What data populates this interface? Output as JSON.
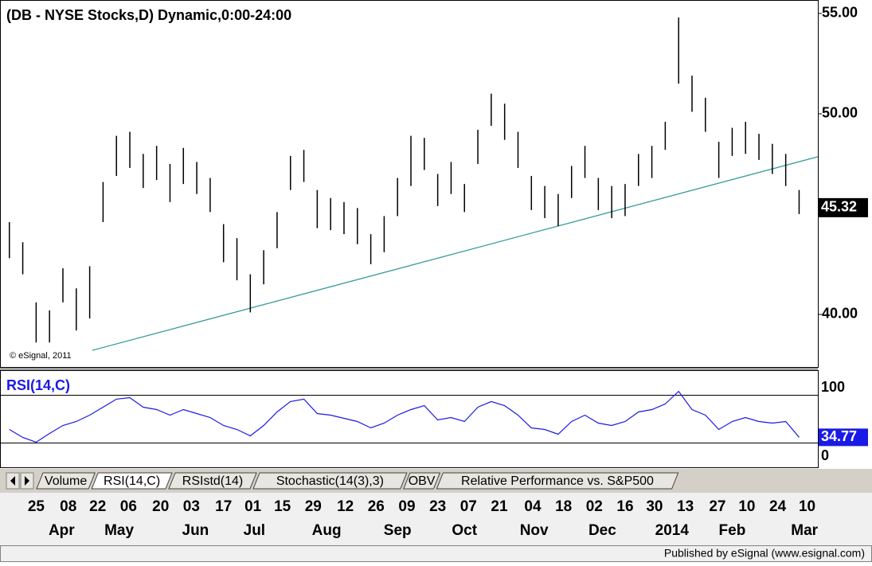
{
  "chart_data": [
    {
      "type": "ohlc",
      "title": "(DB - NYSE Stocks,D) Dynamic,0:00-24:00",
      "watermark": "© eSignal, 2011",
      "color": "#000000",
      "high": [
        44.6,
        43.6,
        40.6,
        40.2,
        42.3,
        41.3,
        42.4,
        46.6,
        48.9,
        49.1,
        48.0,
        48.4,
        47.5,
        48.3,
        47.6,
        46.8,
        44.5,
        43.8,
        42.0,
        43.2,
        45.1,
        47.9,
        48.2,
        46.2,
        45.8,
        45.6,
        45.3,
        44.0,
        44.9,
        46.8,
        48.9,
        48.8,
        47.0,
        47.6,
        46.5,
        49.2,
        51.0,
        50.5,
        49.1,
        46.9,
        46.4,
        46.0,
        47.4,
        48.4,
        46.8,
        46.4,
        46.5,
        48.0,
        48.4,
        49.6,
        54.8,
        51.9,
        50.8,
        48.6,
        49.3,
        49.6,
        49.0,
        48.5,
        48.0,
        46.2
      ],
      "low": [
        42.8,
        42.0,
        38.6,
        38.6,
        40.6,
        39.2,
        39.8,
        44.6,
        46.9,
        47.3,
        46.3,
        46.7,
        45.6,
        46.5,
        46.0,
        45.1,
        42.6,
        41.7,
        40.1,
        41.5,
        43.3,
        46.2,
        46.6,
        44.3,
        44.2,
        44.0,
        43.5,
        42.5,
        43.1,
        44.9,
        46.4,
        47.2,
        45.4,
        46.0,
        45.1,
        47.5,
        49.4,
        48.7,
        47.3,
        45.2,
        44.8,
        44.4,
        45.8,
        46.8,
        45.2,
        44.8,
        44.9,
        46.4,
        46.8,
        48.2,
        51.5,
        50.1,
        49.1,
        46.8,
        47.9,
        48.0,
        47.7,
        47.0,
        46.4,
        45.0
      ],
      "last_price": 45.32,
      "trendline": {
        "x": [
          6.2,
          60.4
        ],
        "y": [
          38.21,
          47.86
        ],
        "color": "#3a9a9a"
      },
      "xlim": [
        -0.7,
        60.4
      ],
      "ylim": [
        37.34,
        55.67
      ],
      "yticks": [
        {
          "value": 40,
          "label": "40.00"
        },
        {
          "value": 50,
          "label": "50.00"
        },
        {
          "value": 55,
          "label": "55.00"
        }
      ],
      "xticks": [
        {
          "value": 2.0,
          "label": "25"
        },
        {
          "value": 4.4,
          "label": "08"
        },
        {
          "value": 6.6,
          "label": "22"
        },
        {
          "value": 8.9,
          "label": "06"
        },
        {
          "value": 11.3,
          "label": "20"
        },
        {
          "value": 13.6,
          "label": "03"
        },
        {
          "value": 16.0,
          "label": "17"
        },
        {
          "value": 18.2,
          "label": "01"
        },
        {
          "value": 20.4,
          "label": "15"
        },
        {
          "value": 22.7,
          "label": "29"
        },
        {
          "value": 25.1,
          "label": "12"
        },
        {
          "value": 27.4,
          "label": "26"
        },
        {
          "value": 29.7,
          "label": "09"
        },
        {
          "value": 32.0,
          "label": "23"
        },
        {
          "value": 34.3,
          "label": "07"
        },
        {
          "value": 36.6,
          "label": "21"
        },
        {
          "value": 39.1,
          "label": "04"
        },
        {
          "value": 41.4,
          "label": "18"
        },
        {
          "value": 43.7,
          "label": "02"
        },
        {
          "value": 46.0,
          "label": "16"
        },
        {
          "value": 48.2,
          "label": "30"
        },
        {
          "value": 50.5,
          "label": "13"
        },
        {
          "value": 52.9,
          "label": "27"
        },
        {
          "value": 55.1,
          "label": "10"
        },
        {
          "value": 57.4,
          "label": "24"
        },
        {
          "value": 59.6,
          "label": "10"
        }
      ],
      "month_ticks": [
        {
          "value": 3.9,
          "label": "Apr"
        },
        {
          "value": 8.2,
          "label": "May"
        },
        {
          "value": 13.9,
          "label": "Jun"
        },
        {
          "value": 18.3,
          "label": "Jul"
        },
        {
          "value": 23.7,
          "label": "Aug"
        },
        {
          "value": 29.0,
          "label": "Sep"
        },
        {
          "value": 34.0,
          "label": "Oct"
        },
        {
          "value": 39.2,
          "label": "Nov"
        },
        {
          "value": 44.3,
          "label": "Dec"
        },
        {
          "value": 49.5,
          "label": "2014"
        },
        {
          "value": 54.0,
          "label": "Feb"
        },
        {
          "value": 59.4,
          "label": "Mar"
        }
      ]
    },
    {
      "type": "line",
      "title": "RSI(14,C)",
      "color": "#1a1ae6",
      "values": [
        41.3,
        34.7,
        30.7,
        38,
        44.7,
        48,
        53.3,
        60,
        66.7,
        68,
        60,
        58,
        53.3,
        58,
        54.7,
        51.3,
        44.7,
        41.3,
        36,
        44.7,
        56,
        64.7,
        66.7,
        54.7,
        53.3,
        50.7,
        48,
        42.7,
        46.7,
        53.3,
        58,
        61.3,
        49.3,
        51.3,
        48,
        60,
        64.7,
        61.3,
        53.3,
        42.7,
        41.3,
        37.3,
        48,
        53.3,
        46.7,
        44.7,
        48,
        56,
        58,
        62.7,
        73.3,
        58,
        53.3,
        41.3,
        48,
        51.3,
        48,
        46.7,
        48,
        34.77
      ],
      "levels": [
        70,
        30
      ],
      "axis_labels": [
        "100",
        "0"
      ],
      "xlim": [
        -0.7,
        60.4
      ],
      "ylim": [
        9,
        91
      ]
    }
  ],
  "tabs": [
    "Volume",
    "RSI(14,C)",
    "RSIstd(14)",
    "Stochastic(14(3),3)",
    "OBV",
    "Relative Performance vs. S&P500"
  ],
  "active_tab": 1,
  "footer": "Published by eSignal (www.esignal.com)"
}
